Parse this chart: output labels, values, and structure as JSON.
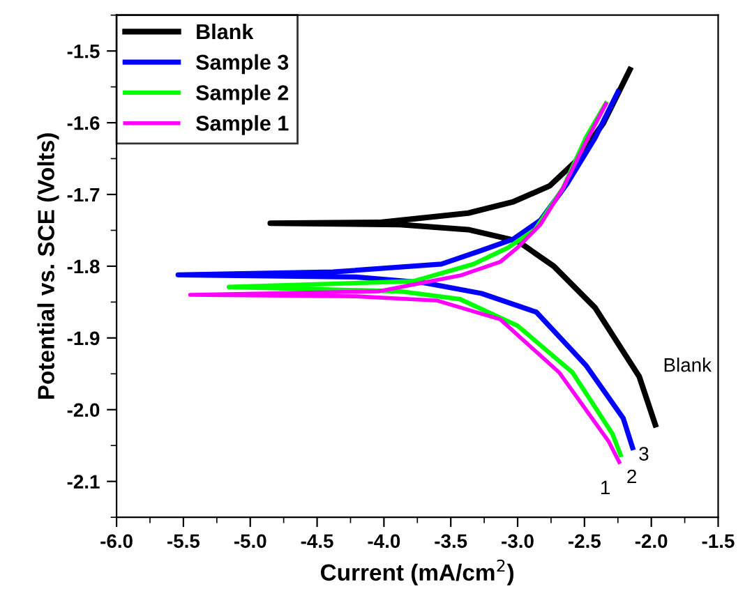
{
  "chart_data": {
    "type": "line",
    "xlabel": "Current (mA/cm$^{2}$)",
    "ylabel": "Potential vs. SCE (Volts)",
    "xlim": [
      -6.0,
      -1.5
    ],
    "ylim": [
      -2.15,
      -1.45
    ],
    "xticks": [
      {
        "value": -6.0,
        "label": "-6.0"
      },
      -5.5,
      {
        "value": -5.0,
        "label": "-5.0"
      },
      -4.5,
      {
        "value": -4.0,
        "label": "-4.0"
      },
      -3.5,
      {
        "value": -3.0,
        "label": "-3.0"
      },
      -2.5,
      {
        "value": -2.0,
        "label": "-2.0"
      },
      -1.5
    ],
    "yticks": [
      -1.5,
      -1.6,
      -1.7,
      -1.8,
      -1.9,
      {
        "value": -2.0,
        "label": "-2.0"
      },
      -2.1
    ],
    "grid": false,
    "legend": "top left",
    "marker": "none",
    "line_style": "solid",
    "series": [
      {
        "name": "Blank",
        "color": "#000000",
        "x": [
          -1.97,
          -2.09,
          -2.42,
          -2.73,
          -3.0,
          -3.37,
          -3.88,
          -4.85,
          -4.04,
          -3.37,
          -3.03,
          -2.76,
          -2.56,
          -2.36,
          -2.16
        ],
        "values": [
          -2.021,
          -1.954,
          -1.858,
          -1.8,
          -1.765,
          -1.749,
          -1.742,
          -1.74,
          -1.739,
          -1.726,
          -1.71,
          -1.688,
          -1.653,
          -1.601,
          -1.526
        ]
      },
      {
        "name": "Sample 3",
        "color": "#0000ff",
        "x": [
          -2.14,
          -2.21,
          -2.49,
          -2.86,
          -3.27,
          -3.7,
          -4.21,
          -5.54,
          -4.38,
          -3.57,
          -3.27,
          -3.03,
          -2.83,
          -2.63,
          -2.42,
          -2.25
        ],
        "values": [
          -2.053,
          -2.012,
          -1.938,
          -1.864,
          -1.838,
          -1.823,
          -1.815,
          -1.812,
          -1.808,
          -1.797,
          -1.778,
          -1.762,
          -1.736,
          -1.685,
          -1.621,
          -1.557
        ]
      },
      {
        "name": "Sample 2",
        "color": "#00ff00",
        "x": [
          -2.23,
          -2.29,
          -2.59,
          -3.0,
          -3.43,
          -3.88,
          -5.16,
          -3.78,
          -3.33,
          -3.07,
          -2.87,
          -2.66,
          -2.49,
          -2.34
        ],
        "values": [
          -2.063,
          -2.034,
          -1.948,
          -1.883,
          -1.846,
          -1.835,
          -1.829,
          -1.821,
          -1.797,
          -1.774,
          -1.749,
          -1.691,
          -1.621,
          -1.573
        ]
      },
      {
        "name": "Sample 1",
        "color": "#ff00ff",
        "x": [
          -2.24,
          -2.32,
          -2.69,
          -3.13,
          -3.6,
          -4.21,
          -5.45,
          -4.04,
          -3.43,
          -3.13,
          -3.0,
          -2.83,
          -2.66,
          -2.49,
          -2.34
        ],
        "values": [
          -2.073,
          -2.044,
          -1.948,
          -1.874,
          -1.848,
          -1.842,
          -1.84,
          -1.835,
          -1.813,
          -1.794,
          -1.774,
          -1.742,
          -1.691,
          -1.627,
          -1.574
        ]
      }
    ],
    "annotations": [
      "Blank",
      "3",
      "2",
      "1"
    ]
  }
}
